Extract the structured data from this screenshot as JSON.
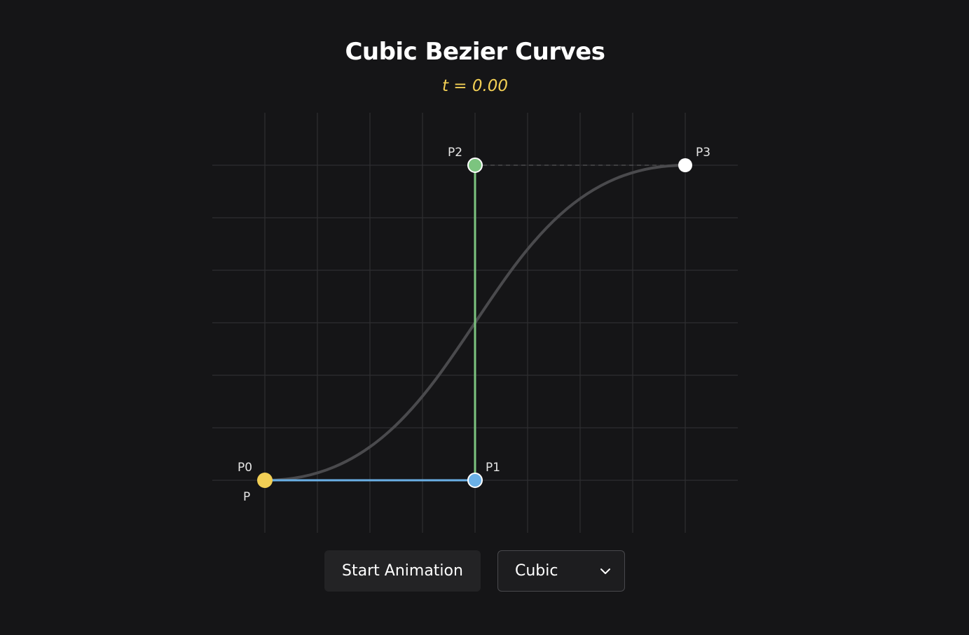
{
  "header": {
    "title": "Cubic Bezier Curves",
    "t_label": "t = 0.00"
  },
  "canvas": {
    "t": 0.0,
    "show_grid": true,
    "colors": {
      "background": "#151517",
      "grid": "#2e2e31",
      "curve": "#4a4a4d",
      "p0": "#f2cf55",
      "p1": "#6ab0e6",
      "p2": "#7cc47f",
      "p3": "#ffffff",
      "segment_p0_p1": "#6ab0e6",
      "segment_p1_p2": "#7cc47f",
      "segment_p2_p3": "#4a4a4d"
    },
    "points": [
      {
        "id": "p0",
        "label": "P0"
      },
      {
        "id": "p1",
        "label": "P1"
      },
      {
        "id": "p2",
        "label": "P2"
      },
      {
        "id": "p3",
        "label": "P3"
      }
    ],
    "moving_point_label": "P"
  },
  "controls": {
    "start_button_label": "Start Animation",
    "curve_type_selected": "Cubic",
    "chevron_icon": "chevron-down-icon"
  }
}
